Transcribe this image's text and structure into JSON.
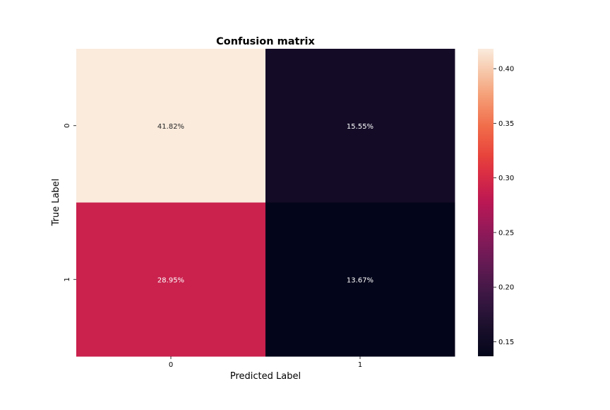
{
  "chart_data": {
    "type": "heatmap",
    "title": "Confusion matrix",
    "xlabel": "Predicted Label",
    "ylabel": "True Label",
    "x_categories": [
      "0",
      "1"
    ],
    "y_categories": [
      "0",
      "1"
    ],
    "values": [
      [
        0.4182,
        0.1555
      ],
      [
        0.2895,
        0.1367
      ]
    ],
    "cell_labels": [
      [
        "41.82%",
        "15.55%"
      ],
      [
        "28.95%",
        "13.67%"
      ]
    ],
    "colormap": "rocket",
    "colorbar": {
      "range": [
        0.1367,
        0.4182
      ],
      "ticks": [
        0.15,
        0.2,
        0.25,
        0.3,
        0.35,
        0.4
      ],
      "tick_labels": [
        "0.15",
        "0.20",
        "0.25",
        "0.30",
        "0.35",
        "0.40"
      ]
    },
    "colors": {
      "annotation_light": "#ffffff",
      "annotation_dark": "#262626",
      "axis": "#000000"
    }
  }
}
